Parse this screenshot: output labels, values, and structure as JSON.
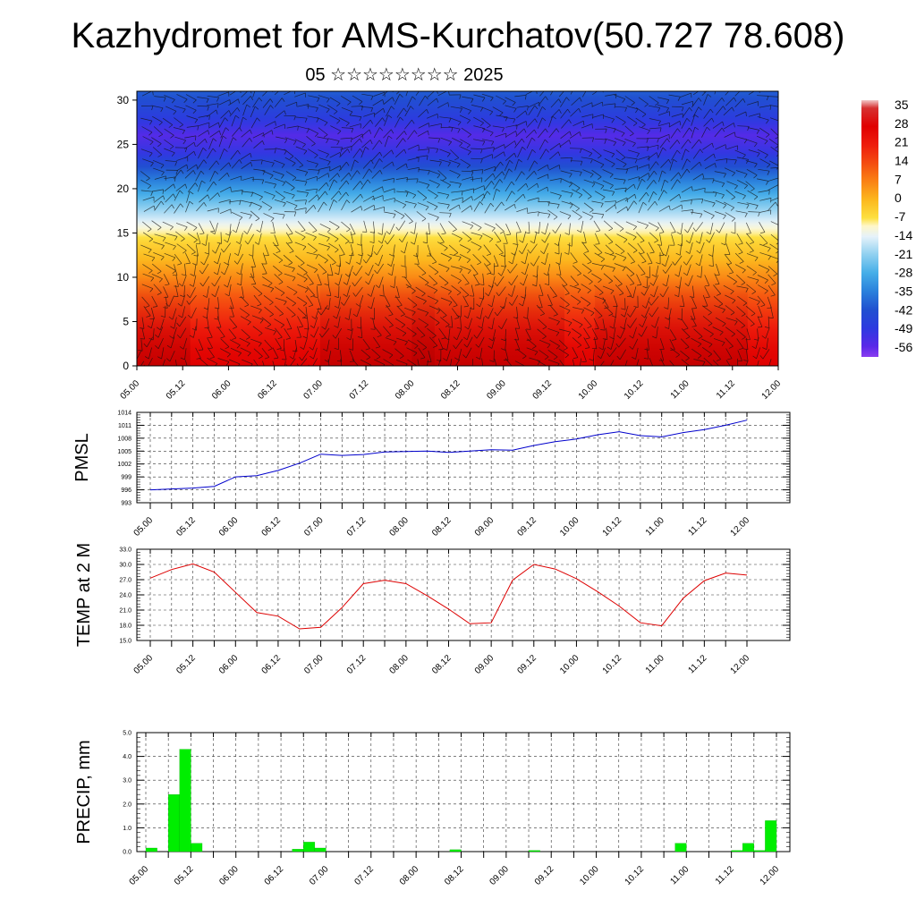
{
  "title": "Kazhydromet for AMS-Kurchatov(50.727 78.608)",
  "subtitle": "05 ☆☆☆☆☆☆☆☆ 2025",
  "x_ticks": [
    "05.00",
    "05.12",
    "06.00",
    "06.12",
    "07.00",
    "07.12",
    "08.00",
    "08.12",
    "09.00",
    "09.12",
    "10.00",
    "10.12",
    "11.00",
    "11.12",
    "12.00"
  ],
  "colorbar": {
    "labels": [
      "35",
      "28",
      "21",
      "14",
      "7",
      "0",
      "-7",
      "-14",
      "-21",
      "-28",
      "-35",
      "-42",
      "-49",
      "-56"
    ]
  },
  "chart_data": [
    {
      "id": "upper-air",
      "type": "heatmap",
      "ylabel": "",
      "ylim": [
        0,
        31
      ],
      "yticks": [
        "0",
        "5",
        "10",
        "15",
        "20",
        "25",
        "30"
      ],
      "xlim": [
        0,
        168
      ],
      "overlay": "wind barbs",
      "colorscale": {
        "values": [
          38,
          35,
          28,
          21,
          14,
          7,
          0,
          -7,
          -10,
          -14,
          -21,
          -28,
          -35,
          -42,
          -49,
          -56,
          -60
        ],
        "colors": [
          "#f2c6c6",
          "#d63030",
          "#e00000",
          "#ee1c0c",
          "#f44c10",
          "#fa8214",
          "#fcb81e",
          "#fde040",
          "#fff7c8",
          "#e6f2fa",
          "#8fd0f0",
          "#45aee8",
          "#2a80dc",
          "#2050d0",
          "#2d3ae0",
          "#5a28e8",
          "#8a3cf0"
        ]
      },
      "temperature_by_height": {
        "heights": [
          0,
          2,
          4,
          6,
          8,
          10,
          12,
          14,
          15,
          16,
          18,
          20,
          22,
          24,
          26,
          28,
          31
        ],
        "values": [
          28,
          26,
          22,
          17,
          12,
          6,
          0,
          -5,
          -9,
          -13,
          -22,
          -31,
          -40,
          -50,
          -55,
          -48,
          -40
        ]
      }
    },
    {
      "id": "pmsl",
      "type": "line",
      "ylabel": "PMSL",
      "ylim": [
        993,
        1014
      ],
      "yticks": [
        "993",
        "996",
        "999",
        "1002",
        "1005",
        "1008",
        "1011",
        "1014"
      ],
      "x": [
        0,
        6,
        12,
        18,
        24,
        30,
        36,
        42,
        48,
        54,
        60,
        66,
        72,
        78,
        84,
        90,
        96,
        102,
        108,
        114,
        120,
        126,
        132,
        138,
        144,
        150,
        156,
        162,
        168
      ],
      "series": [
        {
          "name": "",
          "color": "#0000cc",
          "values": [
            996,
            996.2,
            996.4,
            996.8,
            999,
            999.3,
            1000.5,
            1002.2,
            1004.3,
            1004,
            1004.2,
            1004.8,
            1004.9,
            1005,
            1004.7,
            1005,
            1005.3,
            1005.2,
            1006.3,
            1007.2,
            1007.8,
            1008.8,
            1009.5,
            1008.6,
            1008.3,
            1009.3,
            1010,
            1011,
            1012.2
          ]
        }
      ]
    },
    {
      "id": "temp2m",
      "type": "line",
      "ylabel": "TEMP at 2 M",
      "ylim": [
        15,
        33
      ],
      "yticks": [
        "15.0",
        "18.0",
        "21.0",
        "24.0",
        "27.0",
        "30.0",
        "33.0"
      ],
      "x": [
        0,
        6,
        12,
        18,
        24,
        30,
        36,
        42,
        48,
        54,
        60,
        66,
        72,
        78,
        84,
        90,
        96,
        102,
        108,
        114,
        120,
        126,
        132,
        138,
        144,
        150,
        156,
        162,
        168
      ],
      "series": [
        {
          "name": "",
          "color": "#dd0000",
          "values": [
            27.3,
            29,
            30.1,
            28.5,
            24.5,
            20.5,
            19.8,
            17.3,
            17.6,
            21.5,
            26.2,
            26.9,
            26.2,
            23.8,
            21.2,
            18.3,
            18.5,
            26.9,
            30,
            29.1,
            27.2,
            24.6,
            21.8,
            18.5,
            17.9,
            23.3,
            26.8,
            28.3,
            27.9
          ]
        }
      ]
    },
    {
      "id": "precip",
      "type": "bar",
      "ylabel": "PRECIP, mm",
      "ylim": [
        0,
        5
      ],
      "yticks": [
        "0.0",
        "1.0",
        "2.0",
        "3.0",
        "4.0",
        "5.0"
      ],
      "xlim": [
        0,
        168
      ],
      "bar_color": "#00ee00",
      "x": [
        3,
        6,
        9,
        12,
        15,
        18,
        21,
        24,
        27,
        30,
        33,
        36,
        39,
        42,
        45,
        48,
        51,
        54,
        57,
        60,
        63,
        66,
        69,
        72,
        75,
        78,
        81,
        84,
        87,
        90,
        93,
        96,
        99,
        102,
        105,
        108,
        111,
        114,
        117,
        120,
        123,
        126,
        129,
        132,
        135,
        138,
        141,
        144,
        147,
        150,
        153,
        156,
        159,
        162,
        165,
        168
      ],
      "values": [
        0.15,
        0,
        2.4,
        4.3,
        0.35,
        0,
        0,
        0,
        0,
        0,
        0,
        0,
        0,
        0.1,
        0.4,
        0.15,
        0,
        0,
        0,
        0,
        0,
        0,
        0,
        0,
        0,
        0,
        0,
        0.08,
        0,
        0,
        0,
        0,
        0,
        0,
        0.05,
        0,
        0,
        0,
        0,
        0,
        0,
        0,
        0,
        0,
        0,
        0,
        0,
        0.35,
        0,
        0,
        0,
        0,
        0.05,
        0.35,
        0.05,
        1.3
      ]
    }
  ]
}
